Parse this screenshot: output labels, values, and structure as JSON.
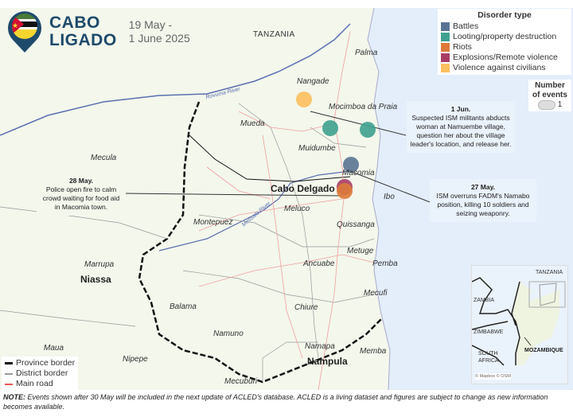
{
  "header": {
    "title_line1": "CABO",
    "title_line2": "LIGADO",
    "dates_line1": "19 May -",
    "dates_line2": "1 June 2025"
  },
  "legend": {
    "title": "Disorder type",
    "items": [
      {
        "label": "Battles",
        "color": "#5b7393"
      },
      {
        "label": "Looting/property destruction",
        "color": "#3fa08f"
      },
      {
        "label": "Riots",
        "color": "#dd7a3a"
      },
      {
        "label": "Explosions/Remote violence",
        "color": "#a83e66"
      },
      {
        "label": "Violence against civilians",
        "color": "#fdbf5f"
      }
    ]
  },
  "size_legend": {
    "title_line1": "Number",
    "title_line2": "of events",
    "value": "1"
  },
  "events": [
    {
      "type": "Violence against civilians",
      "color": "#fdbf5f"
    },
    {
      "type": "Looting/property destruction",
      "color": "#3fa08f"
    },
    {
      "type": "Looting/property destruction",
      "color": "#3fa08f"
    },
    {
      "type": "Battles",
      "color": "#5b7393"
    },
    {
      "type": "Explosions/Remote violence",
      "color": "#a83e66"
    },
    {
      "type": "Riots",
      "color": "#dd7a3a"
    }
  ],
  "callouts": [
    {
      "date": "1 Jun.",
      "text": "Suspected ISM militants abducts woman at Namuembe village, question her about the village leader's location, and release her."
    },
    {
      "date": "27 May.",
      "text": "ISM overruns FADM's Namabo position, killing 10 soldiers and seizing weaponry."
    },
    {
      "date": "28 May.",
      "text": "Police open fire to calm crowd waiting for food aid in Macomia town."
    }
  ],
  "places": [
    "Palma",
    "Nangade",
    "Mocimboa da Praia",
    "Mueda",
    "Muidumbe",
    "Macomia",
    "Ibo",
    "Meluco",
    "Quissanga",
    "Montepuez",
    "Ancuabe",
    "Metuge",
    "Pemba",
    "Mecufi",
    "Balama",
    "Chiure",
    "Namuno",
    "Mecula",
    "Marrupa",
    "Maua",
    "Nipepe",
    "Namapa",
    "Memba",
    "Mecuburi"
  ],
  "regions": {
    "tanzania": "TANZANIA",
    "cabo_delgado": "Cabo Delgado",
    "niassa": "Niassa",
    "nampula": "Nampula"
  },
  "rivers": {
    "rovuma": "Rovuma River",
    "messalo": "Messalo River"
  },
  "map_legend": [
    {
      "label": "Province border",
      "color": "#111"
    },
    {
      "label": "District border",
      "color": "#999"
    },
    {
      "label": "Main road",
      "color": "#e55"
    }
  ],
  "inset": {
    "tanzania": "TANZANIA",
    "zambia": "ZAMBIA",
    "zimbabwe": "ZIMBABWE",
    "south_africa_1": "SOUTH",
    "south_africa_2": "AFRICA",
    "mozambique": "MOZAMBIQUE",
    "attribution": "© Mapbox © OSM"
  },
  "note": {
    "bold": "NOTE:",
    "text": " Events shown after 30 May will be included in the next update of ACLED's database. ACLED is a living dataset and figures are subject to change as new information becomes available."
  }
}
